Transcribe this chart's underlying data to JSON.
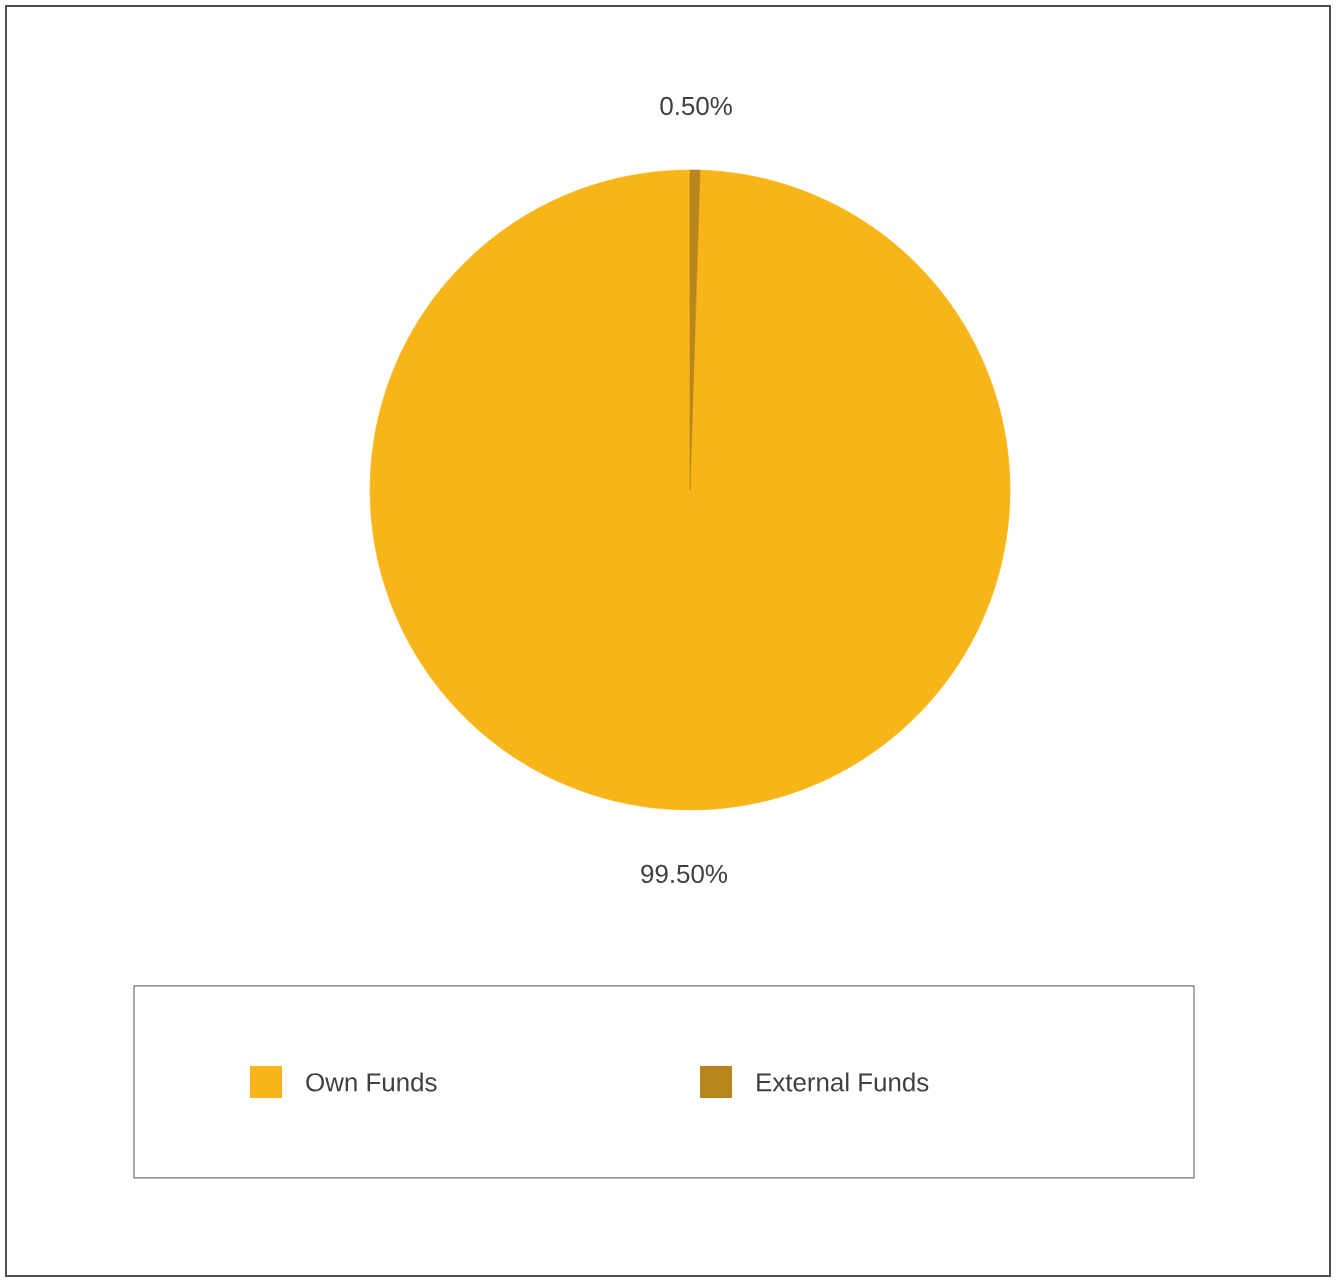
{
  "chart_data": {
    "type": "pie",
    "categories": [
      "Own Funds",
      "External Funds"
    ],
    "values": [
      99.5,
      0.5
    ],
    "colors": [
      "#f7b519",
      "#b8861c"
    ],
    "value_labels": [
      "99.50%",
      "0.50%"
    ],
    "legend": "bottom"
  }
}
